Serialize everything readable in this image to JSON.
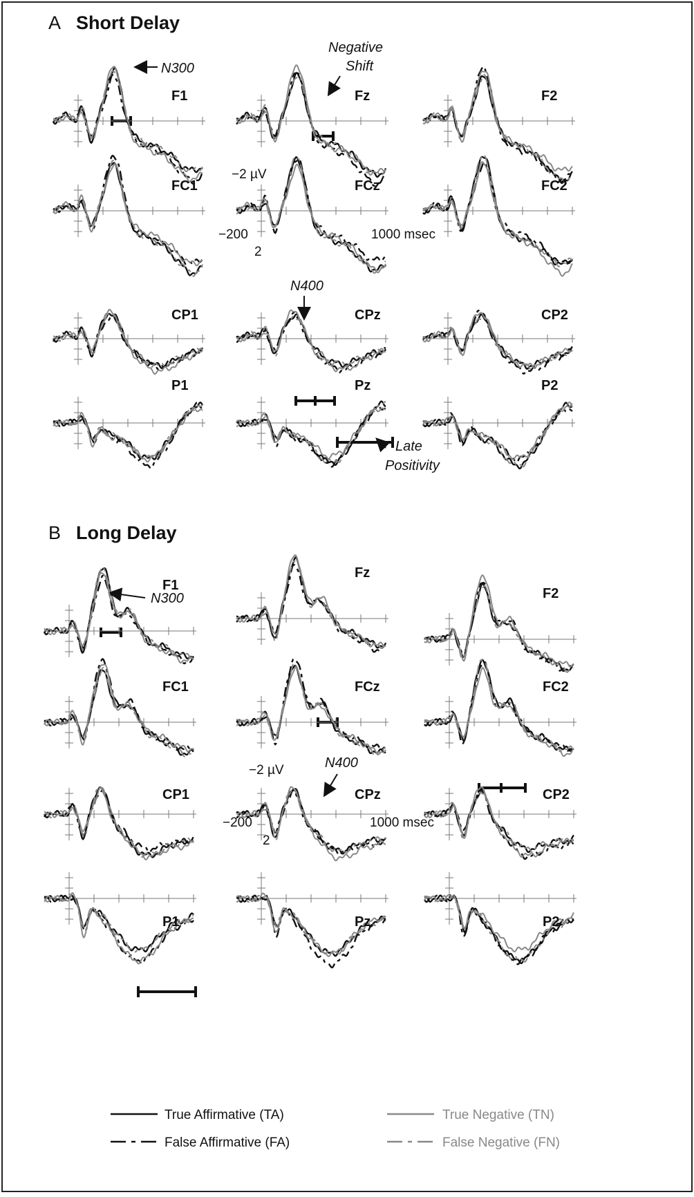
{
  "panels": [
    {
      "label": "A",
      "title": "Short Delay",
      "electrodes": [
        "F1",
        "Fz",
        "F2",
        "FC1",
        "FCz",
        "FC2",
        "CP1",
        "CPz",
        "CP2",
        "P1",
        "Pz",
        "P2"
      ],
      "annotations": {
        "n300": "N300",
        "negative_shift": [
          "Negative",
          "Shift"
        ],
        "n400": "N400",
        "late_positivity": [
          "Late",
          "Positivity"
        ]
      },
      "scale": {
        "amplitude": "−2 µV",
        "positive": "2",
        "start": "−200",
        "end": "1000 msec"
      }
    },
    {
      "label": "B",
      "title": "Long Delay",
      "electrodes": [
        "F1",
        "Fz",
        "F2",
        "FC1",
        "FCz",
        "FC2",
        "CP1",
        "CPz",
        "CP2",
        "P1",
        "Pz",
        "P2"
      ],
      "annotations": {
        "n300": "N300",
        "n400": "N400"
      },
      "scale": {
        "amplitude": "−2 µV",
        "positive": "2",
        "start": "−200",
        "end": "1000 msec"
      }
    }
  ],
  "legend": [
    "True Affirmative (TA)",
    "True Negative (TN)",
    "False Affirmative (FA)",
    "False Negative (FN)"
  ]
}
